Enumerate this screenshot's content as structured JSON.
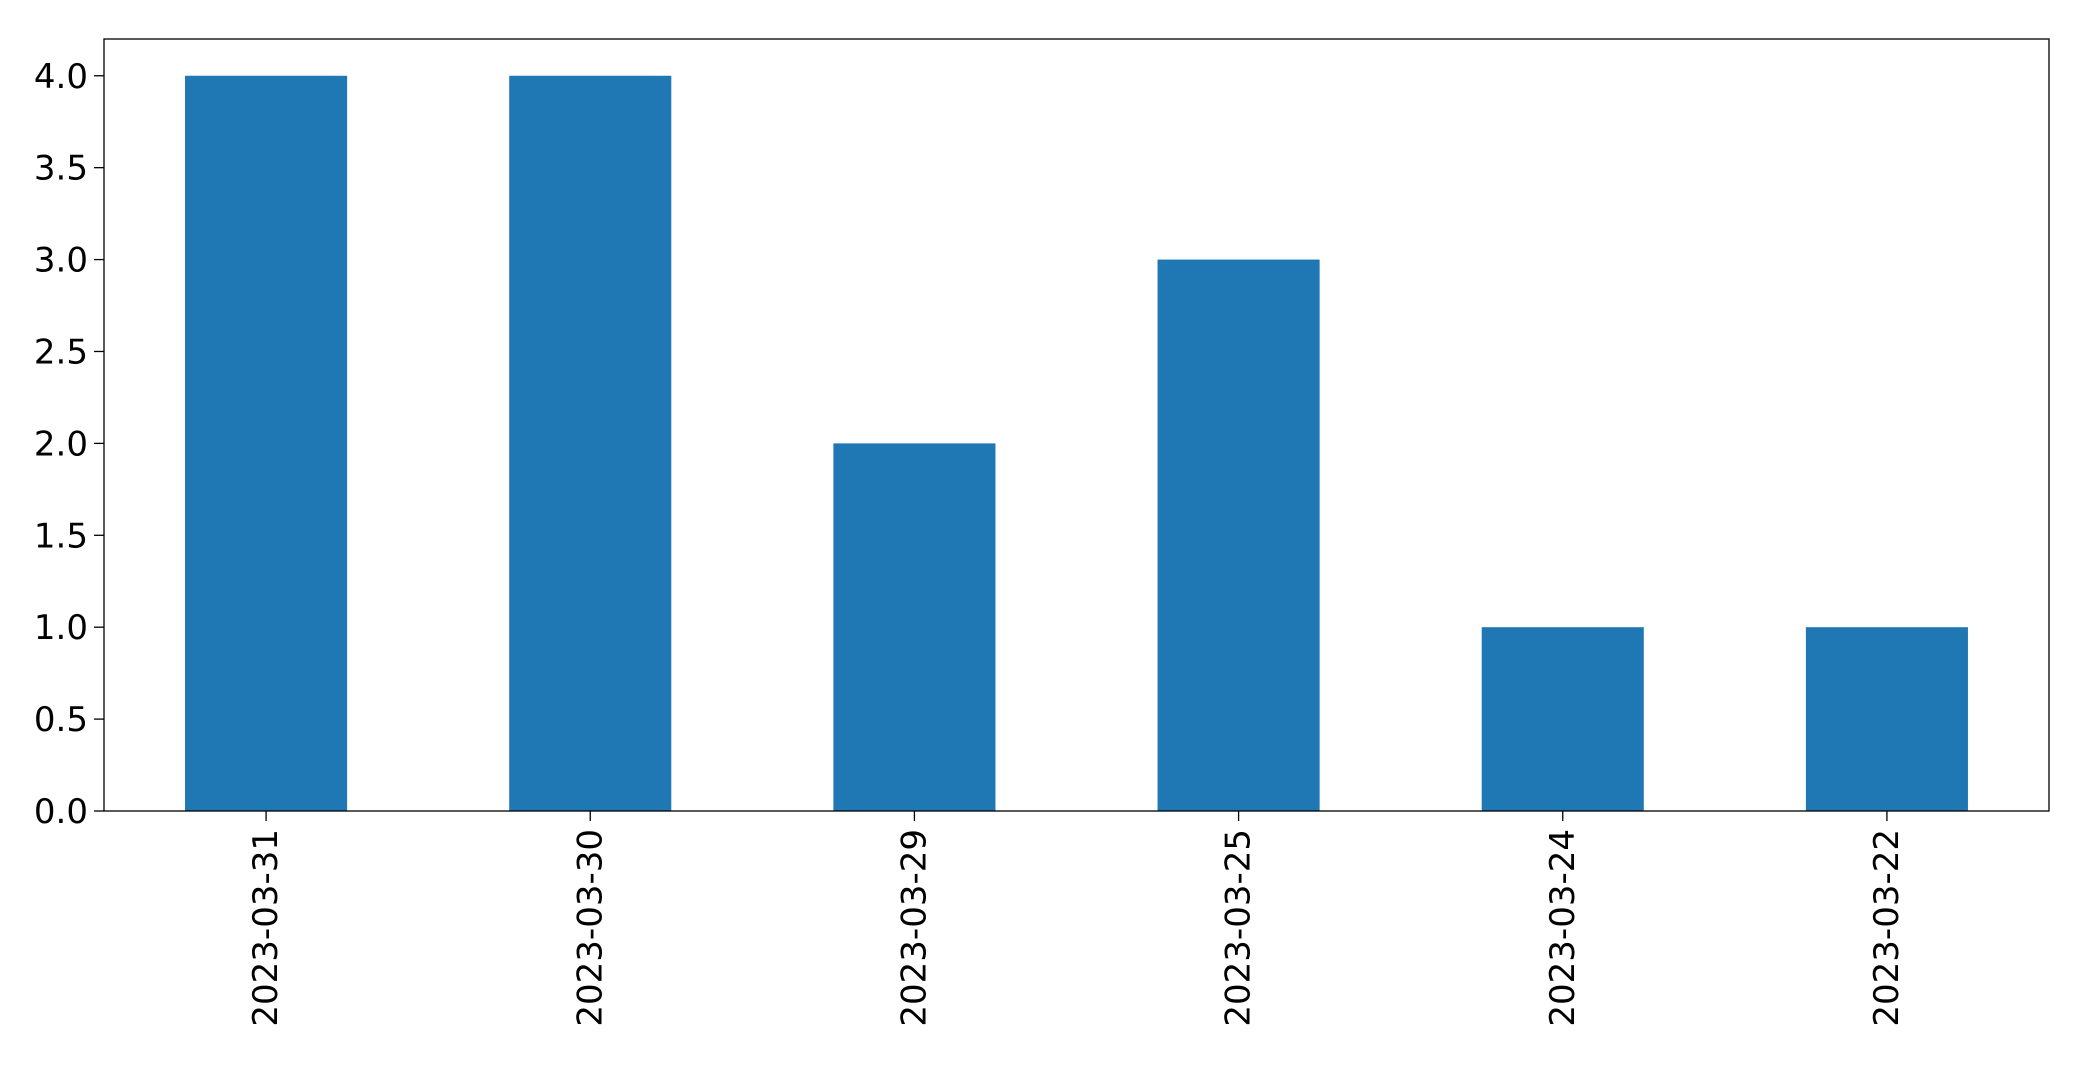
{
  "chart_data": {
    "type": "bar",
    "categories": [
      "2023-03-31",
      "2023-03-30",
      "2023-03-29",
      "2023-03-25",
      "2023-03-24",
      "2023-03-22"
    ],
    "values": [
      4,
      4,
      2,
      3,
      1,
      1
    ],
    "title": "",
    "xlabel": "",
    "ylabel": "",
    "ylim": [
      0,
      4.2
    ],
    "yticks": [
      "0.0",
      "0.5",
      "1.0",
      "1.5",
      "2.0",
      "2.5",
      "3.0",
      "3.5",
      "4.0"
    ],
    "grid": false,
    "legend": "none",
    "bar_color": "#1f77b4"
  }
}
